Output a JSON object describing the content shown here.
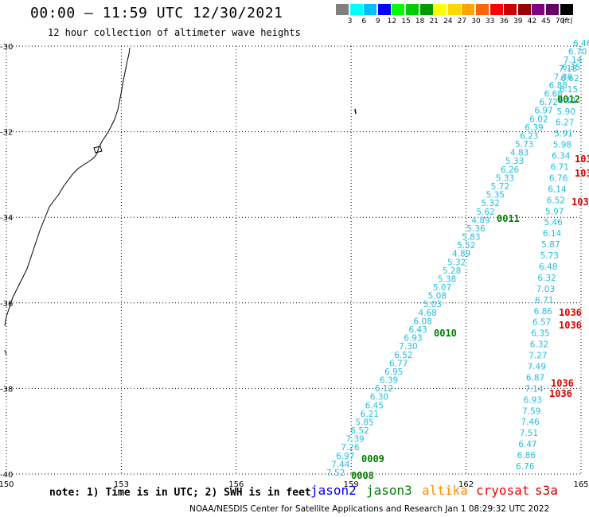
{
  "title": "00:00 – 11:59 UTC 12/30/2021",
  "subtitle": "12 hour collection of altimeter wave heights",
  "colorbar": {
    "unit": "(ft)",
    "colors": [
      "#808080",
      "#00ffff",
      "#00bfff",
      "#0000ff",
      "#00ff00",
      "#00cc00",
      "#009900",
      "#ffff00",
      "#ffd700",
      "#ffa500",
      "#ff6600",
      "#ff0000",
      "#cc0000",
      "#990000",
      "#800080",
      "#660066",
      "#000000"
    ],
    "labels": [
      "3",
      "6",
      "9",
      "12",
      "15",
      "18",
      "21",
      "24",
      "27",
      "30",
      "33",
      "36",
      "39",
      "42",
      "45",
      "70"
    ]
  },
  "lat_labels": [
    "-30",
    "-32",
    "-34",
    "-36",
    "-38",
    "-40"
  ],
  "lon_labels": [
    "150",
    "153",
    "156",
    "159",
    "162",
    "165"
  ],
  "note": "note:  1) Time is in UTC; 2) SWH is in feet",
  "legend": [
    {
      "name": "jason2",
      "color": "#0000ff"
    },
    {
      "name": "jason3",
      "color": "#008000"
    },
    {
      "name": "altika",
      "color": "#ff8c00"
    },
    {
      "name": "cryosat",
      "color": "#ff0000"
    },
    {
      "name": "s3a",
      "color": "#cc0000"
    }
  ],
  "credit": "NOAA/NESDIS Center for Satellite Applications and Research   Jan  1 08:29:32 UTC 2022",
  "tracks": {
    "diagonal": {
      "color": "#1fbfdf",
      "values": [
        "7.52",
        "7.44",
        "6.97",
        "7.26",
        "7.39",
        "6.52",
        "5.85",
        "6.21",
        "6.45",
        "6.30",
        "6.12",
        "6.39",
        "6.95",
        "6.77",
        "6.52",
        "7.30",
        "6.93",
        "6.43",
        "6.08",
        "4.68",
        "5.03",
        "5.08",
        "5.07",
        "5.38",
        "5.28",
        "5.32",
        "4.89",
        "5.52",
        "5.83",
        "5.36",
        "4.89",
        "5.62",
        "5.32",
        "5.35",
        "5.72",
        "5.33",
        "6.26",
        "5.33",
        "4.83",
        "5.73",
        "6.23",
        "6.39",
        "6.02",
        "6.97",
        "6.72",
        "6.68",
        "6.88",
        "7.36",
        "7.18",
        "7.14",
        "6.70",
        "6.46"
      ]
    },
    "vertical": {
      "color": "#1fbfdf",
      "values": [
        "6.35",
        "6.62",
        "6.15",
        "6.11",
        "5.90",
        "6.27",
        "5.91",
        "5.98",
        "6.34",
        "6.71",
        "6.76",
        "6.14",
        "6.52",
        "5.97",
        "5.46",
        "6.14",
        "5.87",
        "5.73",
        "6.48",
        "6.32",
        "7.03",
        "6.71",
        "6.86",
        "6.57",
        "6.35",
        "6.32",
        "7.27",
        "7.49",
        "6.87",
        "7.14",
        "6.93",
        "7.59",
        "7.46",
        "7.51",
        "6.47",
        "6.86",
        "6.76"
      ]
    }
  },
  "pass_labels": [
    {
      "text": "0008",
      "color": "#008000"
    },
    {
      "text": "0009",
      "color": "#008000"
    },
    {
      "text": "0010",
      "color": "#008000"
    },
    {
      "text": "0011",
      "color": "#008000"
    },
    {
      "text": "0012",
      "color": "#008000"
    },
    {
      "text": "1036",
      "color": "#dd0000"
    },
    {
      "text": "1036",
      "color": "#dd0000"
    },
    {
      "text": "1036",
      "color": "#dd0000"
    },
    {
      "text": "1036",
      "color": "#dd0000"
    },
    {
      "text": "103",
      "color": "#dd0000"
    },
    {
      "text": "103",
      "color": "#dd0000"
    },
    {
      "text": "103",
      "color": "#dd0000"
    }
  ]
}
